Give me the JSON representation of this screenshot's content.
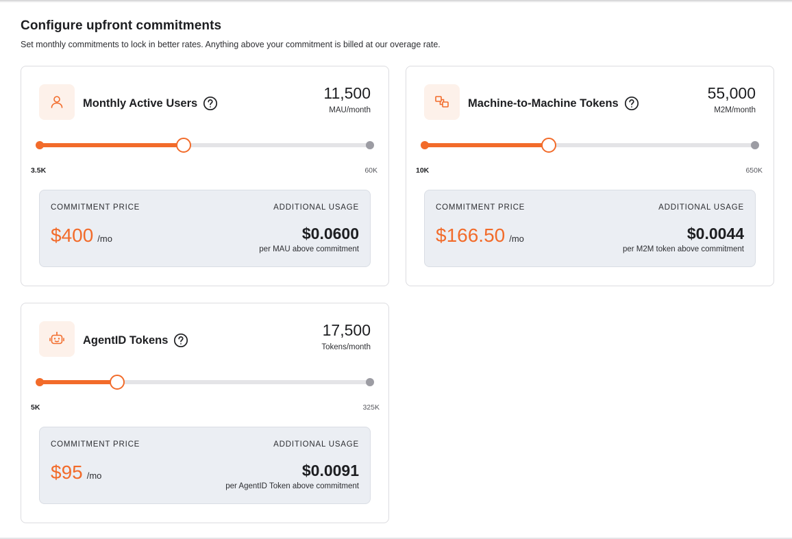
{
  "page": {
    "title": "Configure upfront commitments",
    "subtitle": "Set monthly commitments to lock in better rates. Anything above your commitment is billed at our overage rate."
  },
  "accent_color": "#f26b2a",
  "cards": [
    {
      "icon": "user-icon",
      "title": "Monthly Active Users",
      "value": "11,500",
      "unit": "MAU/month",
      "min_label": "3.5K",
      "max_label": "60K",
      "slider_fraction": 0.435,
      "commitment_label": "COMMITMENT PRICE",
      "price": "$400",
      "price_per": "/mo",
      "additional_label": "ADDITIONAL USAGE",
      "rate": "$0.0600",
      "rate_desc": "per MAU above commitment"
    },
    {
      "icon": "linked-squares-icon",
      "title": "Machine-to-Machine Tokens",
      "value": "55,000",
      "unit": "M2M/month",
      "min_label": "10K",
      "max_label": "650K",
      "slider_fraction": 0.376,
      "commitment_label": "COMMITMENT PRICE",
      "price": "$166.50",
      "price_per": "/mo",
      "additional_label": "ADDITIONAL USAGE",
      "rate": "$0.0044",
      "rate_desc": "per M2M token above commitment"
    },
    {
      "icon": "robot-icon",
      "title": "AgentID Tokens",
      "value": "17,500",
      "unit": "Tokens/month",
      "min_label": "5K",
      "max_label": "325K",
      "slider_fraction": 0.236,
      "commitment_label": "COMMITMENT PRICE",
      "price": "$95",
      "price_per": "/mo",
      "additional_label": "ADDITIONAL USAGE",
      "rate": "$0.0091",
      "rate_desc": "per AgentID Token above commitment"
    }
  ]
}
